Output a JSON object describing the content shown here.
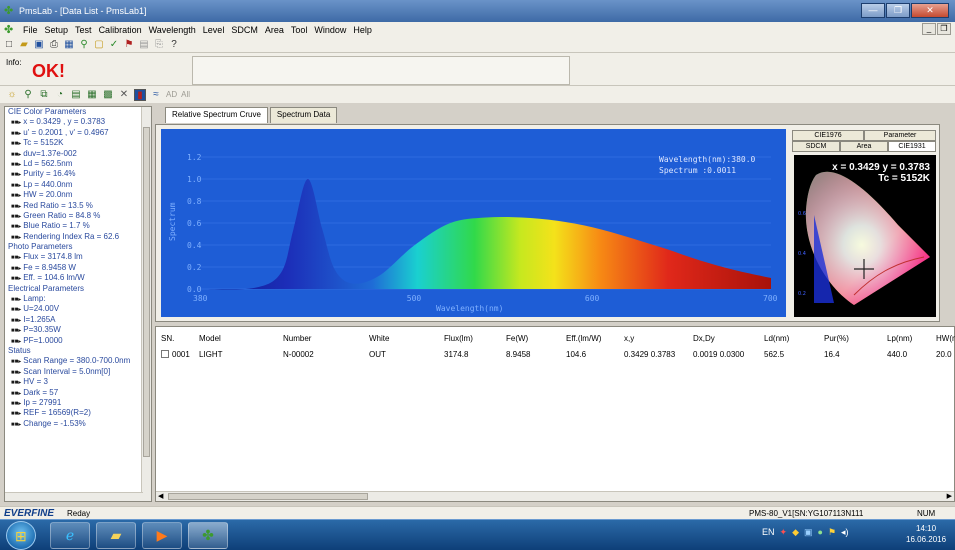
{
  "window": {
    "title": "PmsLab - [Data List - PmsLab1]",
    "min": "—",
    "max": "❐",
    "close": "✕"
  },
  "menu": [
    "File",
    "Setup",
    "Test",
    "Calibration",
    "Wavelength",
    "Level",
    "SDCM",
    "Area",
    "Tool",
    "Window",
    "Help"
  ],
  "info": {
    "label": "Info:",
    "value": "OK!"
  },
  "toolbar2": {
    "ab": "AD",
    "all": "All"
  },
  "tree": [
    {
      "t": "CIE Color Parameters",
      "c": 1
    },
    {
      "t": "x = 0.3429 , y = 0.3783"
    },
    {
      "t": "u' = 0.2001 , v' = 0.4967"
    },
    {
      "t": "Tc = 5152K"
    },
    {
      "t": "duv=1.37e-002"
    },
    {
      "t": "Ld = 562.5nm"
    },
    {
      "t": "Purity = 16.4%"
    },
    {
      "t": "Lp = 440.0nm"
    },
    {
      "t": "HW = 20.0nm"
    },
    {
      "t": "Red Ratio = 13.5 %"
    },
    {
      "t": "Green Ratio = 84.8 %"
    },
    {
      "t": "Blue Ratio = 1.7 %"
    },
    {
      "t": "Rendering Index Ra = 62.6"
    },
    {
      "t": "Photo Parameters",
      "c": 1
    },
    {
      "t": "Flux = 3174.8 lm"
    },
    {
      "t": "Fe = 8.9458 W"
    },
    {
      "t": "Eff. = 104.6 lm/W"
    },
    {
      "t": "Electrical Parameters",
      "c": 1
    },
    {
      "t": "Lamp:"
    },
    {
      "t": "U=24.00V"
    },
    {
      "t": "I=1.265A"
    },
    {
      "t": "P=30.35W"
    },
    {
      "t": "PF=1.0000"
    },
    {
      "t": "Status",
      "c": 1
    },
    {
      "t": "Scan Range = 380.0-700.0nm"
    },
    {
      "t": "Scan Interval = 5.0nm[0]"
    },
    {
      "t": "HV  = 3"
    },
    {
      "t": "Dark  = 57"
    },
    {
      "t": "Ip = 27991"
    },
    {
      "t": "REF = 16569(R=2)"
    },
    {
      "t": "Change = -1.53%"
    }
  ],
  "tabs": [
    "Relative Spectrum Cruve",
    "Spectrum Data"
  ],
  "chart": {
    "ylabel": "Spectrum",
    "xlabel": "Wavelength(nm)",
    "yticks": [
      "1.2",
      "1.0",
      "0.8",
      "0.6",
      "0.4",
      "0.2",
      "0.0"
    ],
    "xticks": [
      "380",
      "500",
      "600",
      "700"
    ],
    "readout1": "Wavelength(nm):380.0",
    "readout2": "Spectrum :0.0011"
  },
  "chart_data": {
    "type": "area",
    "xlabel": "Wavelength(nm)",
    "ylabel": "Spectrum",
    "xlim": [
      380,
      700
    ],
    "ylim": [
      0,
      1.2
    ],
    "x": [
      380,
      410,
      425,
      432,
      440,
      448,
      455,
      465,
      480,
      500,
      520,
      540,
      560,
      580,
      600,
      620,
      640,
      660,
      680,
      700
    ],
    "y": [
      0.0,
      0.01,
      0.15,
      0.55,
      1.0,
      0.55,
      0.18,
      0.05,
      0.12,
      0.4,
      0.6,
      0.65,
      0.65,
      0.62,
      0.56,
      0.47,
      0.37,
      0.26,
      0.17,
      0.1
    ]
  },
  "cie": {
    "tabs_top": [
      "CIE1976",
      "Parameter"
    ],
    "tabs_bottom": [
      "SDCM",
      "Area",
      "CIE1931"
    ],
    "xy": "x = 0.3429 y = 0.3783",
    "tc": "Tc = 5152K"
  },
  "table": {
    "headers": [
      "SN.",
      "Model",
      "Number",
      "White",
      "Flux(lm)",
      "Fe(W)",
      "Eff.(lm/W)",
      "x,y",
      "Dx,Dy",
      "Ld(nm)",
      "Pur(%)",
      "Lp(nm)",
      "HW(nm"
    ],
    "rows": [
      [
        "0001",
        "LIGHT",
        "N-00002",
        "OUT",
        "3174.8",
        "8.9458",
        "104.6",
        "0.3429 0.3783",
        "0.0019 0.0300",
        "562.5",
        "16.4",
        "440.0",
        "20.0"
      ]
    ]
  },
  "status": {
    "brand": "EVERFINE",
    "ready": "Reday",
    "pms": "PMS-80_V1[SN:YG107113N111",
    "num": "NUM"
  },
  "taskbar": {
    "lang": "EN",
    "time": "14:10",
    "date": "16.06.2016"
  }
}
